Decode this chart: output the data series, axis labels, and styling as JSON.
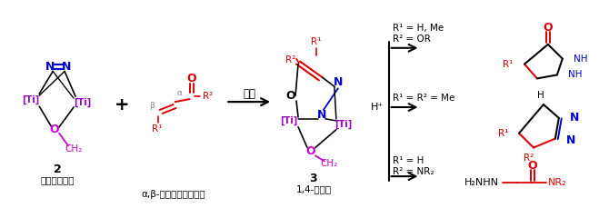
{
  "bg_color": "#ffffff",
  "fig_width": 6.7,
  "fig_height": 2.4,
  "dpi": 100,
  "colors": {
    "black": "#000000",
    "red": "#dd0000",
    "blue": "#0000cc",
    "purple": "#9900bb",
    "magenta": "#cc00cc",
    "gray": "#888888"
  },
  "compound2_label": "2",
  "compound2_name": "二窒素化合物",
  "compound3_label": "3",
  "compound3_name": "1,4-付加体",
  "carbonyl_name": "α,β-不飽和カルボニル",
  "arrow_rt_label": "室温"
}
